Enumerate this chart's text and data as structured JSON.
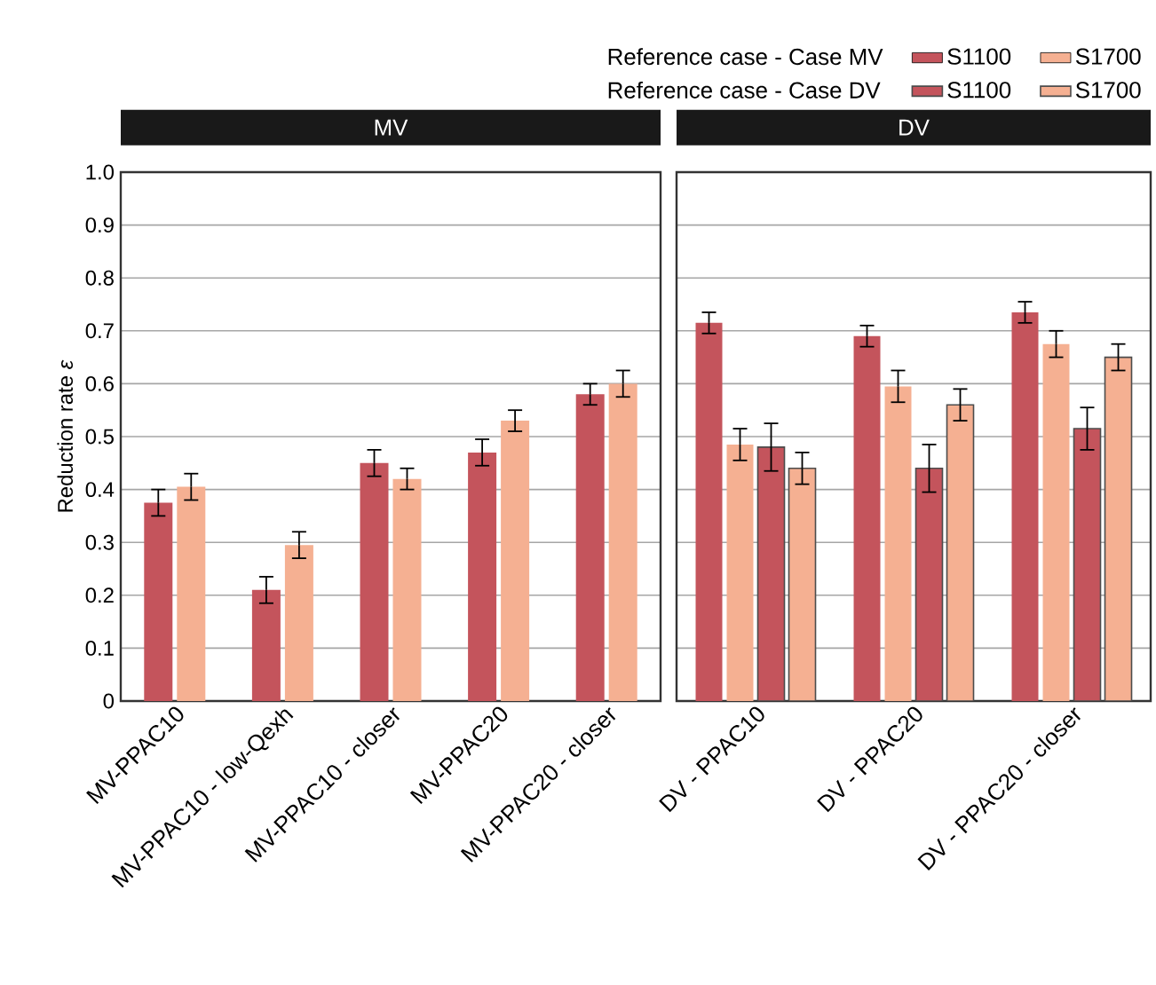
{
  "chart_data": [
    {
      "type": "bar",
      "title": "MV",
      "ylabel": "Reduction rate *ε*",
      "categories": [
        "MV-PPAC10",
        "MV-PPAC10 - low-Qexh",
        "MV-PPAC10 - closer",
        "MV-PPAC20",
        "MV-PPAC20 - closer"
      ],
      "series": [
        {
          "color": "#c4545c",
          "values": [
            0.375,
            0.21,
            0.45,
            0.47,
            0.58
          ],
          "errors": [
            0.025,
            0.025,
            0.025,
            0.025,
            0.02
          ]
        },
        {
          "color": "#f5b092",
          "values": [
            0.405,
            0.295,
            0.42,
            0.53,
            0.6
          ],
          "errors": [
            0.025,
            0.025,
            0.02,
            0.02,
            0.025
          ]
        }
      ],
      "ylim": [
        0,
        1
      ],
      "yticks": [
        {
          "value": 0,
          "label": "0"
        },
        0.1,
        0.2,
        0.3,
        0.4,
        0.5,
        0.6,
        0.7,
        0.8,
        0.9,
        {
          "value": 1,
          "label": "1.0"
        }
      ],
      "grid": "y",
      "legend": false
    },
    {
      "type": "bar",
      "title": "DV",
      "categories": [
        "DV - PPAC10",
        "DV - PPAC20",
        "DV - PPAC20 - closer"
      ],
      "series": [
        {
          "name": "S1100",
          "color": "#c4545c",
          "values": [
            0.715,
            0.69,
            0.735
          ],
          "errors": [
            0.02,
            0.02,
            0.02
          ]
        },
        {
          "name": "S1700",
          "color": "#f5b092",
          "values": [
            0.485,
            0.595,
            0.675
          ],
          "errors": [
            0.03,
            0.03,
            0.025
          ]
        },
        {
          "name": "S1100",
          "color": "#c4545c",
          "values": [
            0.48,
            0.44,
            0.515
          ],
          "errors": [
            0.045,
            0.045,
            0.04
          ]
        },
        {
          "name": "S1700",
          "color": "#f5b092",
          "values": [
            0.44,
            0.56,
            0.65
          ],
          "errors": [
            0.03,
            0.03,
            0.025
          ]
        }
      ],
      "annotations": [
        "Reference case - Case MV",
        "Reference case - Case DV"
      ],
      "ylim": [
        0,
        1
      ],
      "yticks": [
        0,
        0.1,
        0.2,
        0.3,
        0.4,
        0.5,
        0.6,
        0.7,
        0.8,
        0.9,
        1
      ],
      "grid": "y",
      "tick_labels": "x",
      "legend": "top right"
    }
  ]
}
